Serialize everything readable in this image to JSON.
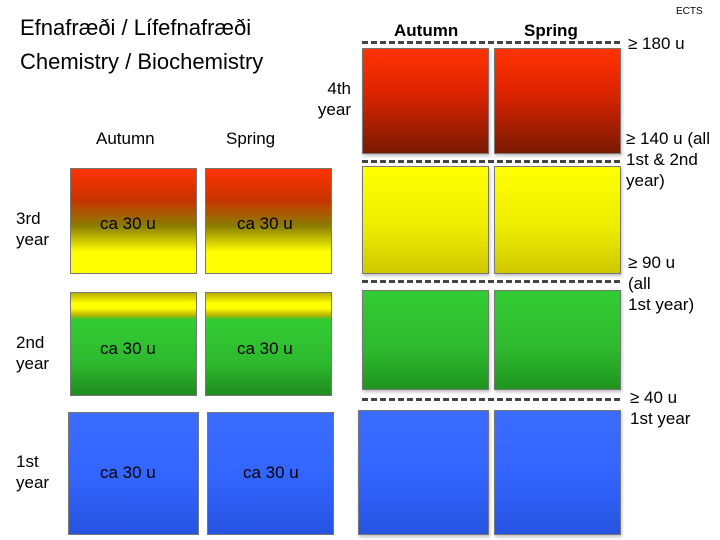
{
  "title": {
    "line1": "Efnafræði / Lífefnafræði",
    "line2": "Chemistry / Biochemistry"
  },
  "ects_label": "ECTS",
  "right_columns": {
    "autumn": "Autumn",
    "spring": "Spring"
  },
  "left_columns": {
    "autumn": "Autumn",
    "spring": "Spring"
  },
  "fourth_year": [
    "4th",
    "year"
  ],
  "years": [
    {
      "label": [
        "3rd",
        "year"
      ],
      "autumn": "ca 30 u",
      "spring": "ca 30 u"
    },
    {
      "label": [
        "2nd",
        "year"
      ],
      "autumn": "ca 30 u",
      "spring": "ca 30 u"
    },
    {
      "label": [
        "1st",
        "year"
      ],
      "autumn": "ca 30 u",
      "spring": "ca 30 u"
    }
  ],
  "thresholds": [
    {
      "lines": [
        "≥ 180 u"
      ]
    },
    {
      "lines": [
        "≥ 140 u (all",
        "1st & 2nd",
        "year)"
      ]
    },
    {
      "lines": [
        "≥ 90 u",
        "(all",
        "1st year)"
      ]
    },
    {
      "lines": [
        "≥ 40 u",
        "1st year"
      ]
    }
  ],
  "colors": {
    "red": "#ff3300",
    "dark_red": "#7a1a00",
    "yellow": "#ffff00",
    "olive": "#8a8400",
    "green": "#33cc33",
    "dark_green": "#1a8c1a",
    "blue": "#3366ff",
    "dark_blue": "#1f4fd6"
  }
}
